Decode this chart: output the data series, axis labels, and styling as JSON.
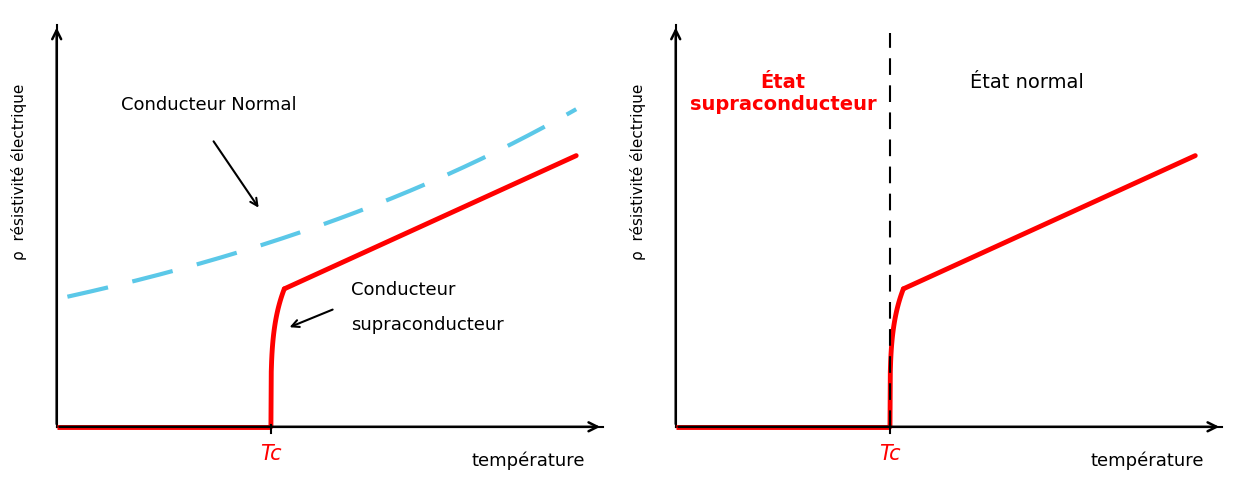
{
  "fig_width": 12.52,
  "fig_height": 4.89,
  "bg_color": "#ffffff",
  "left_panel": {
    "ylabel": "ρ  résistivité électrique",
    "xlabel": "température",
    "tc_label": "Tc",
    "tc_color": "#ff0000",
    "label_normal": "Conducteur Normal",
    "label_supra_line1": "Conducteur",
    "label_supra_line2": "supraconducteur",
    "normal_color": "#5bc8e8",
    "supra_color": "#ff0000",
    "arrow_color": "#000000"
  },
  "right_panel": {
    "ylabel": "ρ  résistivité électrique",
    "xlabel": "température",
    "tc_label": "Tc",
    "tc_color": "#ff0000",
    "label_etat_supra": "État\nsupraconducteur",
    "label_etat_normal": "État normal",
    "supra_color": "#ff0000",
    "etat_supra_color": "#ff0000",
    "etat_normal_color": "#000000",
    "dashed_color": "#000000"
  }
}
